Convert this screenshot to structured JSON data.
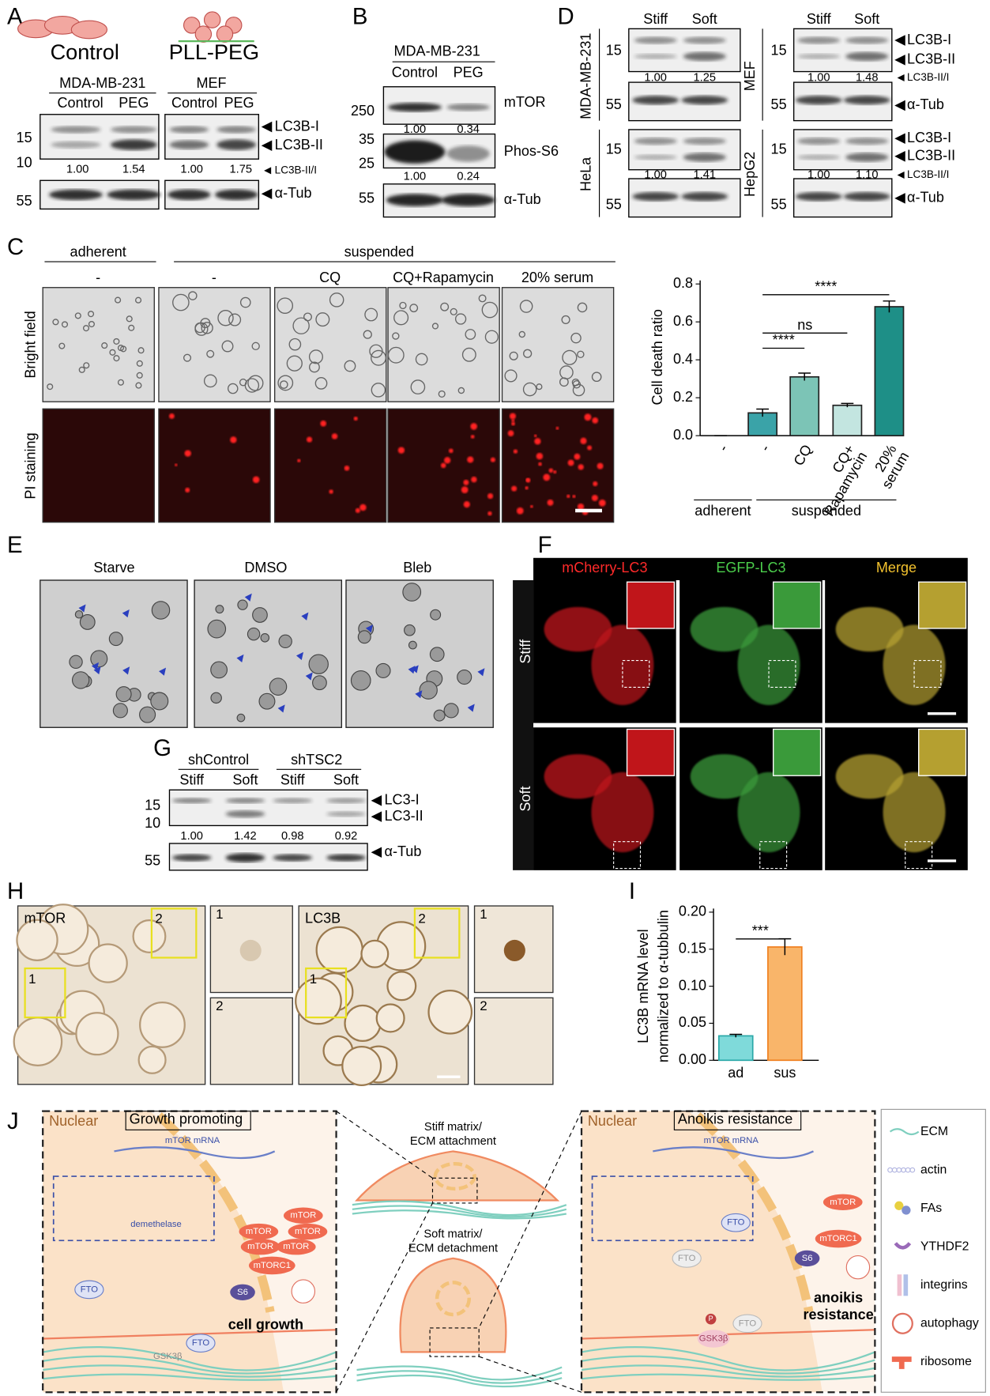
{
  "A": {
    "letter": "A",
    "conditions": [
      "Control",
      "PLL-PEG"
    ],
    "cell_lines": [
      "MDA-MB-231",
      "MEF"
    ],
    "lanes": [
      "Control",
      "PEG",
      "Control",
      "PEG"
    ],
    "markers": [
      "15",
      "10",
      "55"
    ],
    "ratios": [
      "1.00",
      "1.54",
      "1.00",
      "1.75"
    ],
    "bands": [
      "LC3B-I",
      "LC3B-II",
      "LC3B-II/I",
      "α-Tub"
    ]
  },
  "B": {
    "letter": "B",
    "cell_line": "MDA-MB-231",
    "lanes": [
      "Control",
      "PEG"
    ],
    "markers": [
      "250",
      "35",
      "25",
      "55"
    ],
    "ratios": [
      [
        "1.00",
        "0.34"
      ],
      [
        "1.00",
        "0.24"
      ]
    ],
    "bands": [
      "mTOR",
      "Phos-S6",
      "α-Tub"
    ]
  },
  "C": {
    "letter": "C",
    "groups": [
      "adherent",
      "suspended"
    ],
    "treatments": [
      "-",
      "-",
      "CQ",
      "CQ+Rapamycin",
      "20% serum"
    ],
    "rows": [
      "Bright field",
      "PI staining"
    ]
  },
  "D": {
    "letter": "D",
    "lanes": [
      "Stiff",
      "Soft",
      "Stiff",
      "Soft"
    ],
    "cell_lines": [
      "MDA-MB-231",
      "HeLa",
      "MEF",
      "HepG2"
    ],
    "markers": [
      "15",
      "55"
    ],
    "ratios": [
      [
        "1.00",
        "1.25"
      ],
      [
        "1.00",
        "1.41"
      ],
      [
        "1.00",
        "1.48"
      ],
      [
        "1.00",
        "1.10"
      ]
    ],
    "bands": [
      "LC3B-I",
      "LC3B-II",
      "LC3B-II/I",
      "α-Tub"
    ]
  },
  "E": {
    "letter": "E",
    "conditions": [
      "Starve",
      "DMSO",
      "Bleb"
    ]
  },
  "F": {
    "letter": "F",
    "channels": [
      "mCherry-LC3",
      "EGFP-LC3",
      "Merge"
    ],
    "rows": [
      "Stiff",
      "Soft"
    ]
  },
  "G": {
    "letter": "G",
    "groups": [
      "shControl",
      "shTSC2"
    ],
    "lanes": [
      "Stiff",
      "Soft",
      "Stiff",
      "Soft"
    ],
    "markers": [
      "15",
      "10",
      "55"
    ],
    "ratios": [
      "1.00",
      "1.42",
      "0.98",
      "0.92"
    ],
    "bands": [
      "LC3-I",
      "LC3-II",
      "α-Tub"
    ]
  },
  "H": {
    "letter": "H",
    "stains": [
      "mTOR",
      "LC3B"
    ],
    "regions": [
      "1",
      "2"
    ]
  },
  "I": {
    "letter": "I"
  },
  "J": {
    "letter": "J",
    "nuclear": "Nuclear",
    "left_title": "Growth promoting",
    "right_title": "Anoikis resistance",
    "mrna": "mTOR mRNA",
    "demethylase": "demethelase",
    "fto": "FTO",
    "gsk": "GSK3β",
    "mtor": "mTOR",
    "mtorc1": "mTORC1",
    "s6": "S6",
    "p": "P",
    "cell_growth": "cell growth",
    "anoikis": [
      "anoikis",
      "resistance"
    ],
    "stiff": [
      "Stiff matrix/",
      "ECM attachment"
    ],
    "soft": [
      "Soft matrix/",
      "ECM detachment"
    ],
    "legend": [
      "ECM",
      "actin",
      "FAs",
      "YTHDF2",
      "integrins",
      "autophagy",
      "ribosome"
    ]
  },
  "chart_data": [
    {
      "type": "bar",
      "ylabel": "Cell death ratio",
      "categories": [
        [
          "-"
        ],
        [
          "-"
        ],
        [
          "CQ"
        ],
        [
          "CQ+",
          "Rapamycin"
        ],
        [
          "20%",
          "serum"
        ]
      ],
      "values": [
        0,
        0.12,
        0.31,
        0.16,
        0.68
      ],
      "errors": [
        0,
        0.02,
        0.02,
        0.01,
        0.03
      ],
      "colors": [
        "#1d3d6e",
        "#3aa3a8",
        "#7cc4b6",
        "#c3e5e0",
        "#1e8f87"
      ],
      "ylim": [
        0,
        0.8
      ],
      "yticks": [
        {
          "value": 0,
          "label": "0.0"
        },
        0.2,
        0.4,
        0.6,
        0.8
      ],
      "group_labels": [
        "adherent",
        "suspended"
      ],
      "annotations": [
        "****",
        "ns",
        "****"
      ]
    },
    {
      "type": "bar",
      "ylabel": [
        "LC3B mRNA level",
        "normalized to α-tubbulin"
      ],
      "categories": [
        [
          "ad"
        ],
        [
          "sus"
        ]
      ],
      "values": [
        0.033,
        0.153
      ],
      "errors": [
        0.002,
        0.011
      ],
      "colors": [
        "#7fdada",
        "#f9b56a"
      ],
      "edgecolors": [
        "#2aa8a8",
        "#f07f1e"
      ],
      "ylim": [
        0,
        0.2
      ],
      "yticks": [
        {
          "value": 0,
          "label": "0.00"
        },
        {
          "value": 0.05,
          "label": "0.05"
        },
        {
          "value": 0.1,
          "label": "0.10"
        },
        0.15,
        {
          "value": 0.2,
          "label": "0.20"
        }
      ],
      "annotations": [
        "***"
      ]
    }
  ]
}
